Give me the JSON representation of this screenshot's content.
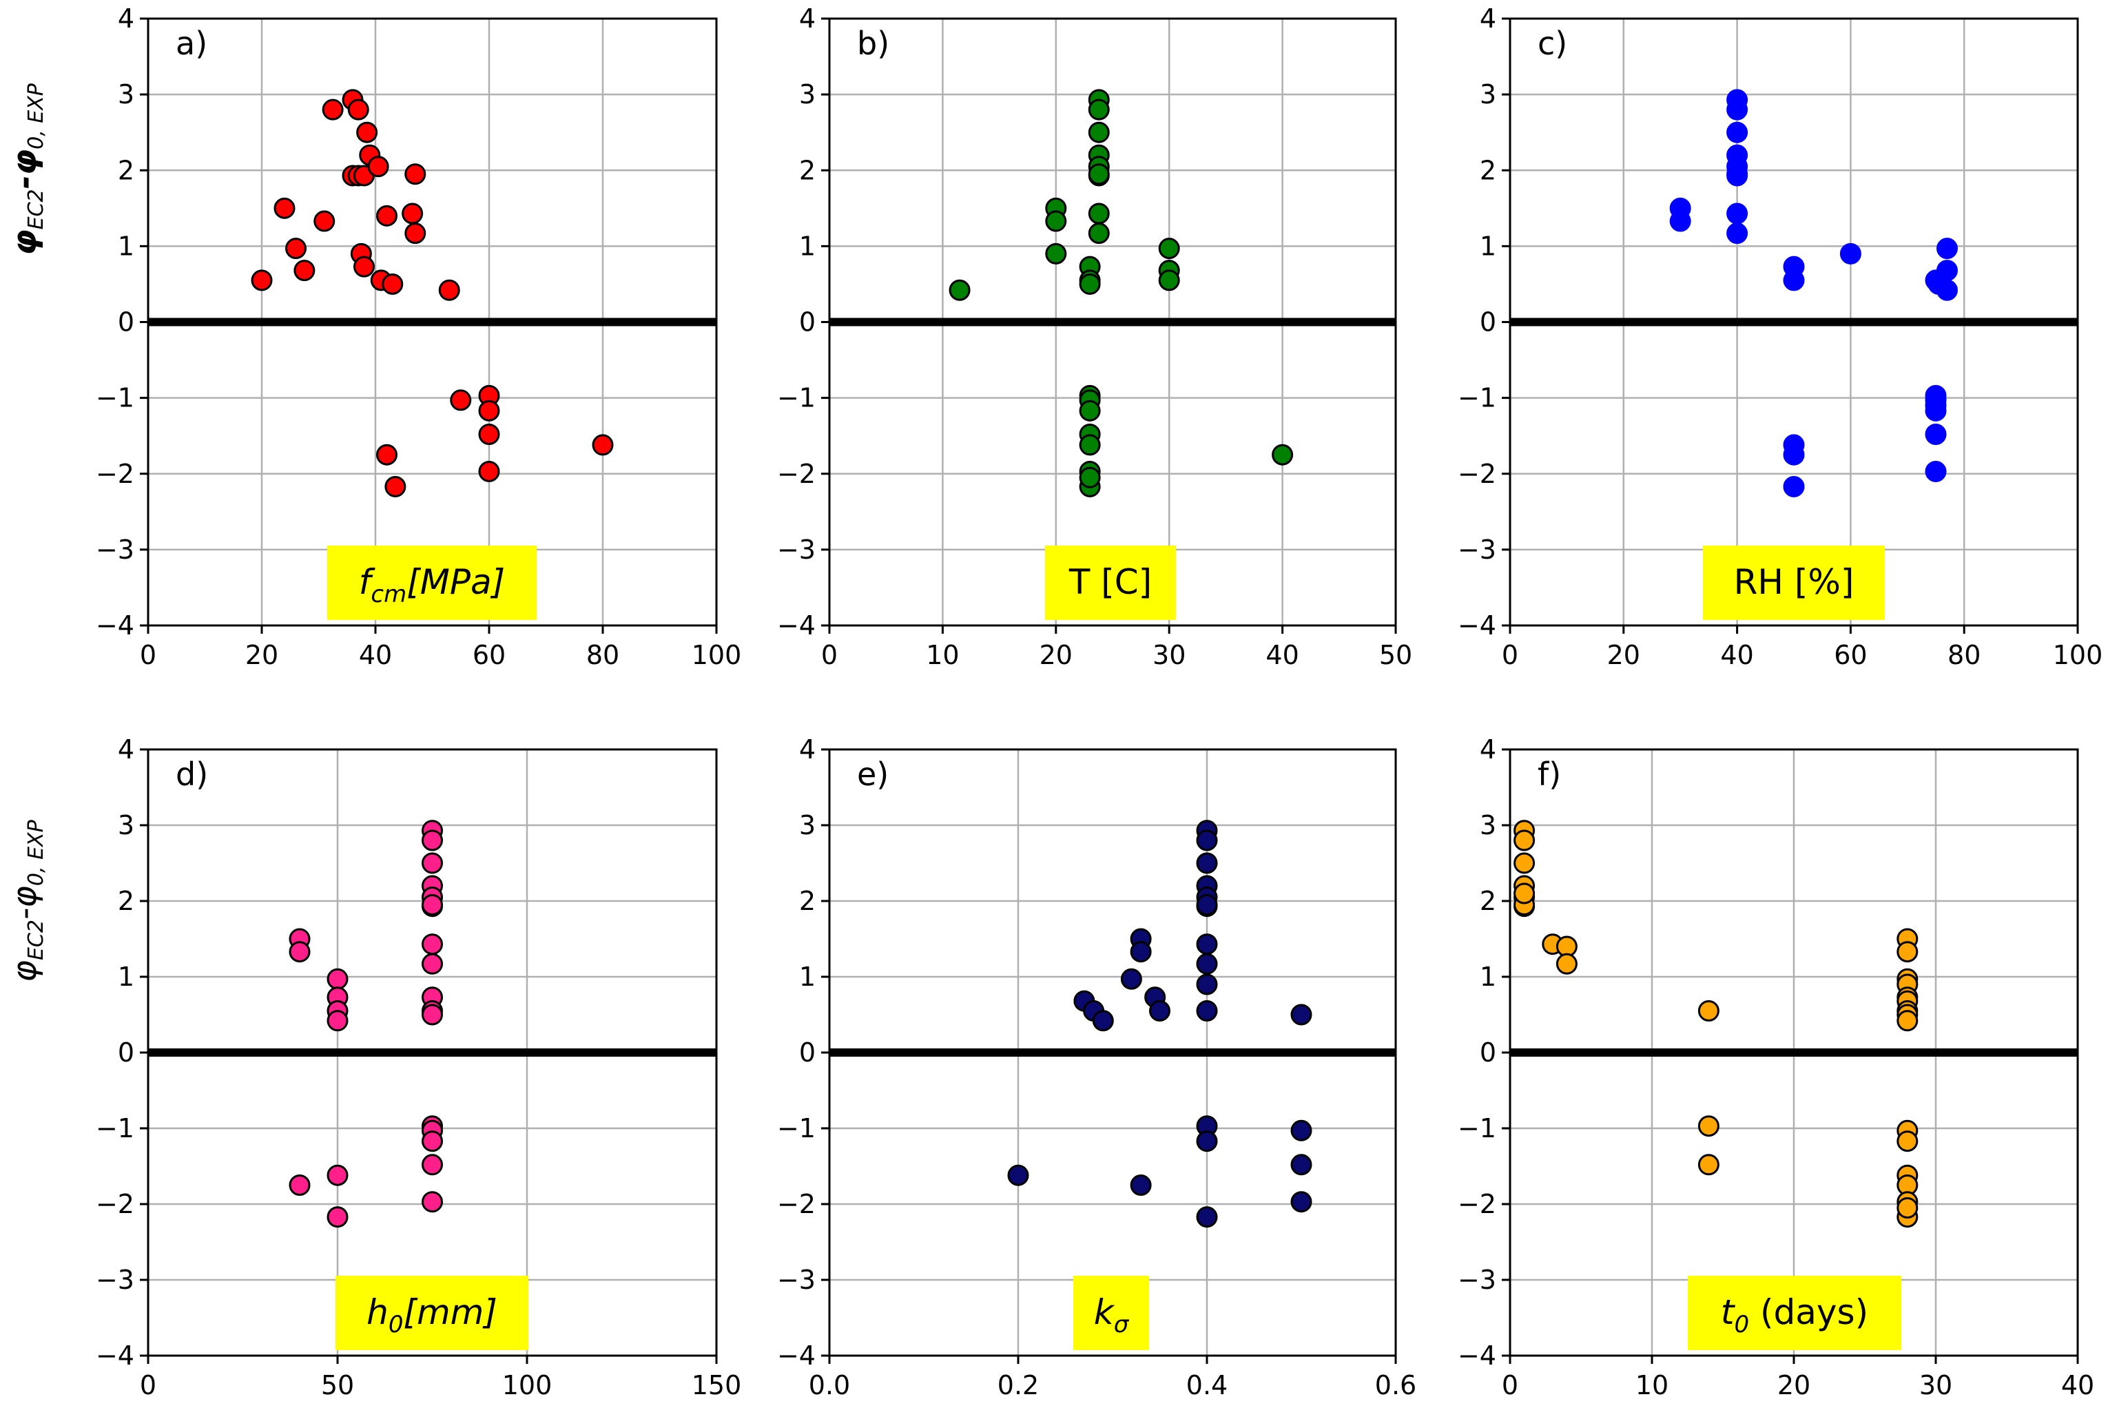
{
  "ylabel": {
    "main": "φ",
    "sub1": "EC2",
    "mid": "-φ",
    "sub2": "0, EXP"
  },
  "colors": {
    "grid": "#b0b0b0",
    "zero_line": "#000000",
    "label_box": "#ffff00",
    "marker_edge": "#000000"
  },
  "chart_data": [
    {
      "type": "scatter",
      "letter": "a)",
      "color": "#ff0000",
      "xlabel": {
        "main": "f",
        "sub": "cm",
        "rest": "[MPa]",
        "italic": true
      },
      "xlim": [
        0,
        100
      ],
      "ylim": [
        -4,
        4
      ],
      "xticks": [
        0,
        20,
        40,
        60,
        80,
        100
      ],
      "xtick_labels": [
        "0",
        "20",
        "40",
        "60",
        "80",
        "100"
      ],
      "yticks": [
        -4,
        -3,
        -2,
        -1,
        0,
        1,
        2,
        3,
        4
      ],
      "ytick_labels": [
        "−4",
        "−3",
        "−2",
        "−1",
        "0",
        "1",
        "2",
        "3",
        "4"
      ],
      "x": [
        20,
        24,
        26,
        27.5,
        31,
        32.5,
        36,
        37,
        36,
        37,
        38,
        37.5,
        38,
        39,
        38.5,
        40.5,
        41,
        42,
        43,
        47,
        46.5,
        47,
        53,
        55,
        60,
        60,
        60,
        60,
        80,
        42,
        43.5
      ],
      "y": [
        0.55,
        1.5,
        0.97,
        0.68,
        1.33,
        2.8,
        2.93,
        2.8,
        1.93,
        1.93,
        1.93,
        0.9,
        0.73,
        2.2,
        2.5,
        2.05,
        0.55,
        1.4,
        0.5,
        1.95,
        1.43,
        1.17,
        0.42,
        -1.03,
        -0.97,
        -1.17,
        -1.48,
        -1.97,
        -1.62,
        -1.75,
        -2.17
      ]
    },
    {
      "type": "scatter",
      "letter": "b)",
      "color": "#008000",
      "xlabel": {
        "main": "T [C]",
        "sub": "",
        "rest": "",
        "italic": false
      },
      "xlim": [
        0,
        50
      ],
      "ylim": [
        -4,
        4
      ],
      "xticks": [
        0,
        10,
        20,
        30,
        40,
        50
      ],
      "xtick_labels": [
        "0",
        "10",
        "20",
        "30",
        "40",
        "50"
      ],
      "yticks": [
        -4,
        -3,
        -2,
        -1,
        0,
        1,
        2,
        3,
        4
      ],
      "ytick_labels": [
        "−4",
        "−3",
        "−2",
        "−1",
        "0",
        "1",
        "2",
        "3",
        "4"
      ],
      "x": [
        11.5,
        20,
        20,
        20,
        23,
        23,
        23,
        23.8,
        23.8,
        23.8,
        23.8,
        23.8,
        23.8,
        23.8,
        23.8,
        23.8,
        30,
        30,
        30,
        23,
        23,
        23,
        23,
        23,
        23,
        23,
        23,
        40
      ],
      "y": [
        0.42,
        1.5,
        1.33,
        0.9,
        0.73,
        0.55,
        0.5,
        2.93,
        2.8,
        2.5,
        2.2,
        2.05,
        1.93,
        1.43,
        1.17,
        1.95,
        0.97,
        0.68,
        0.55,
        -0.97,
        -1.03,
        -1.17,
        -1.48,
        -1.62,
        -1.97,
        -2.17,
        -2.05,
        -1.75
      ]
    },
    {
      "type": "scatter",
      "letter": "c)",
      "color": "#0000ff",
      "xlabel": {
        "main": "RH [%]",
        "sub": "",
        "rest": "",
        "italic": false
      },
      "xlim": [
        0,
        100
      ],
      "ylim": [
        -4,
        4
      ],
      "xticks": [
        0,
        20,
        40,
        60,
        80,
        100
      ],
      "xtick_labels": [
        "0",
        "20",
        "40",
        "60",
        "80",
        "100"
      ],
      "yticks": [
        -4,
        -3,
        -2,
        -1,
        0,
        1,
        2,
        3,
        4
      ],
      "ytick_labels": [
        "−4",
        "−3",
        "−2",
        "−1",
        "0",
        "1",
        "2",
        "3",
        "4"
      ],
      "x": [
        30,
        30,
        40,
        40,
        40,
        40,
        40,
        40,
        40,
        40,
        40,
        50,
        50,
        60,
        75,
        75.5,
        77,
        77,
        77,
        50,
        50,
        50,
        75,
        75,
        75,
        75,
        75,
        75
      ],
      "y": [
        1.5,
        1.33,
        2.93,
        2.8,
        2.5,
        2.2,
        2.05,
        1.93,
        1.43,
        1.17,
        1.95,
        0.73,
        0.55,
        0.9,
        0.55,
        0.5,
        0.97,
        0.68,
        0.42,
        -1.62,
        -1.75,
        -2.17,
        -0.97,
        -1.03,
        -1.17,
        -1.48,
        -1.97,
        -1.1
      ],
      "point_edge": "#0000ff"
    },
    {
      "type": "scatter",
      "letter": "d)",
      "color": "#ff1f8a",
      "xlabel": {
        "main": "h",
        "sub": "0",
        "rest": "[mm]",
        "italic": true
      },
      "xlim": [
        0,
        150
      ],
      "ylim": [
        -4,
        4
      ],
      "xticks": [
        0,
        50,
        100,
        150
      ],
      "xtick_labels": [
        "0",
        "50",
        "100",
        "150"
      ],
      "yticks": [
        -4,
        -3,
        -2,
        -1,
        0,
        1,
        2,
        3,
        4
      ],
      "ytick_labels": [
        "−4",
        "−3",
        "−2",
        "−1",
        "0",
        "1",
        "2",
        "3",
        "4"
      ],
      "x": [
        40,
        40,
        50,
        50,
        50,
        50,
        75,
        75,
        75,
        75,
        75,
        75,
        75,
        75,
        75,
        75,
        75,
        75,
        40,
        50,
        50,
        75,
        75,
        75,
        75,
        75
      ],
      "y": [
        1.5,
        1.33,
        0.97,
        0.73,
        0.55,
        0.42,
        2.93,
        2.8,
        2.5,
        2.2,
        2.05,
        1.93,
        1.43,
        1.17,
        0.73,
        0.55,
        0.5,
        1.95,
        -1.75,
        -1.62,
        -2.17,
        -0.97,
        -1.03,
        -1.17,
        -1.48,
        -1.97
      ]
    },
    {
      "type": "scatter",
      "letter": "e)",
      "color": "#0a0a6e",
      "xlabel": {
        "main": "k",
        "sub": "σ",
        "rest": "",
        "italic": true
      },
      "xlim": [
        0,
        0.6
      ],
      "ylim": [
        -4,
        4
      ],
      "xticks": [
        0,
        0.2,
        0.4,
        0.6
      ],
      "xtick_labels": [
        "0.0",
        "0.2",
        "0.4",
        "0.6"
      ],
      "yticks": [
        -4,
        -3,
        -2,
        -1,
        0,
        1,
        2,
        3,
        4
      ],
      "ytick_labels": [
        "−4",
        "−3",
        "−2",
        "−1",
        "0",
        "1",
        "2",
        "3",
        "4"
      ],
      "x": [
        0.27,
        0.28,
        0.29,
        0.32,
        0.33,
        0.33,
        0.345,
        0.35,
        0.4,
        0.4,
        0.4,
        0.4,
        0.4,
        0.4,
        0.4,
        0.4,
        0.4,
        0.4,
        0.4,
        0.5,
        0.2,
        0.33,
        0.4,
        0.4,
        0.4,
        0.5,
        0.5,
        0.5
      ],
      "y": [
        0.68,
        0.55,
        0.42,
        0.97,
        1.5,
        1.33,
        0.73,
        0.55,
        2.93,
        2.8,
        2.5,
        2.2,
        2.05,
        1.93,
        1.43,
        1.17,
        0.9,
        0.55,
        1.95,
        0.5,
        -1.62,
        -1.75,
        -0.97,
        -1.17,
        -2.17,
        -1.03,
        -1.48,
        -1.97
      ]
    },
    {
      "type": "scatter",
      "letter": "f)",
      "color": "#ffa500",
      "xlabel": {
        "main": "t",
        "sub": "0",
        "rest": " (days)",
        "italic": true
      },
      "xlim": [
        0,
        40
      ],
      "ylim": [
        -4,
        4
      ],
      "xticks": [
        0,
        10,
        20,
        30,
        40
      ],
      "xtick_labels": [
        "0",
        "10",
        "20",
        "30",
        "40"
      ],
      "yticks": [
        -4,
        -3,
        -2,
        -1,
        0,
        1,
        2,
        3,
        4
      ],
      "ytick_labels": [
        "−4",
        "−3",
        "−2",
        "−1",
        "0",
        "1",
        "2",
        "3",
        "4"
      ],
      "x": [
        1,
        1,
        1,
        1,
        1,
        1,
        1,
        1,
        3,
        4,
        4,
        14,
        28,
        28,
        28,
        28,
        28,
        28,
        28,
        28,
        28,
        14,
        14,
        28,
        28,
        28,
        28,
        28,
        28,
        28
      ],
      "y": [
        2.93,
        2.8,
        2.5,
        2.2,
        2.05,
        1.93,
        1.95,
        2.1,
        1.43,
        1.4,
        1.17,
        0.55,
        1.5,
        1.33,
        0.97,
        0.9,
        0.73,
        0.68,
        0.55,
        0.5,
        0.42,
        -0.97,
        -1.48,
        -1.03,
        -1.17,
        -1.62,
        -1.75,
        -1.97,
        -2.17,
        -2.05
      ]
    }
  ]
}
